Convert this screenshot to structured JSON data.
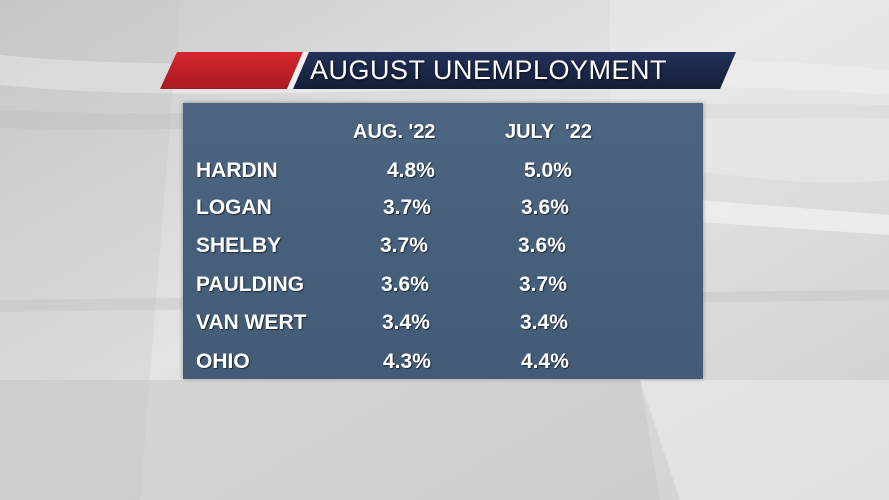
{
  "title": "AUGUST UNEMPLOYMENT",
  "columns": [
    "AUG. '22",
    "JULY  '22"
  ],
  "rows": [
    {
      "name": "HARDIN",
      "aug": "4.8%",
      "jul": "5.0%"
    },
    {
      "name": "LOGAN",
      "aug": "3.7%",
      "jul": "3.6%"
    },
    {
      "name": "SHELBY",
      "aug": "3.7%",
      "jul": "3.6%"
    },
    {
      "name": "PAULDING",
      "aug": "3.6%",
      "jul": "3.7%"
    },
    {
      "name": "VAN WERT",
      "aug": "3.4%",
      "jul": "3.4%"
    },
    {
      "name": "OHIO",
      "aug": "4.3%",
      "jul": "4.4%"
    }
  ],
  "colors": {
    "banner_red": "#c8202a",
    "banner_navy": "#1c2a4a",
    "panel_blue": "#46607c",
    "text": "#ffffff"
  },
  "chart_data": {
    "type": "table",
    "title": "AUGUST UNEMPLOYMENT",
    "columns": [
      "AUG. '22",
      "JULY  '22"
    ],
    "categories": [
      "HARDIN",
      "LOGAN",
      "SHELBY",
      "PAULDING",
      "VAN WERT",
      "OHIO"
    ],
    "series": [
      {
        "name": "AUG. '22",
        "values": [
          4.8,
          3.7,
          3.7,
          3.6,
          3.4,
          4.3
        ]
      },
      {
        "name": "JULY  '22",
        "values": [
          5.0,
          3.6,
          3.6,
          3.7,
          3.4,
          4.4
        ]
      }
    ],
    "unit": "%"
  }
}
